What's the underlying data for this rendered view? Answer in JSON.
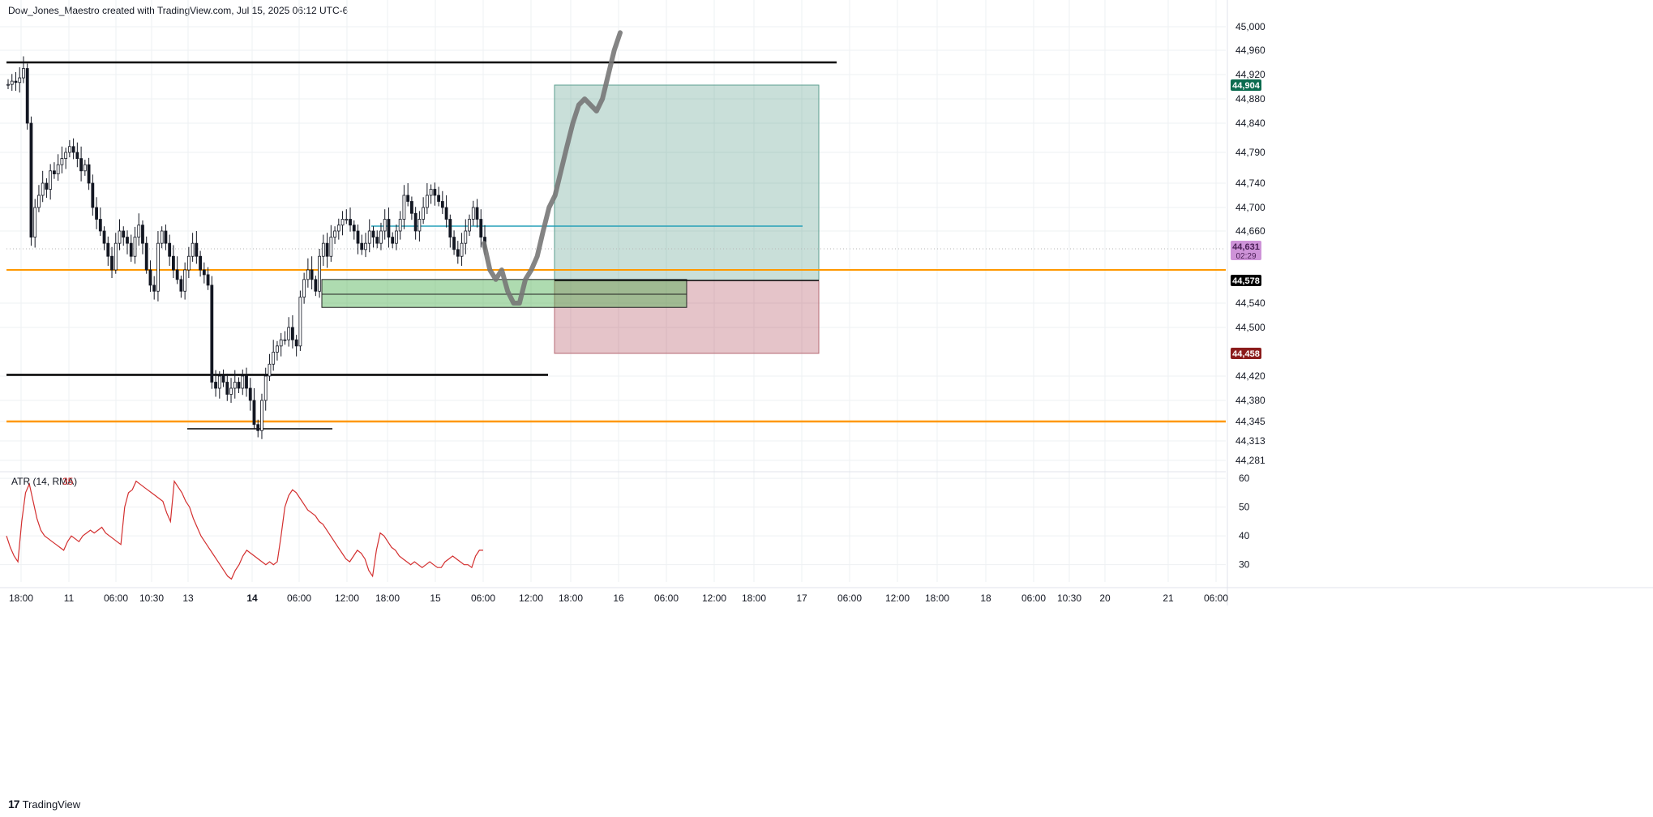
{
  "header": {
    "text": "Dow_Jones_Maestro created with TradingView.com, Jul 15, 2025 06:12 UTC-6"
  },
  "brand": {
    "text": "TradingView"
  },
  "colors": {
    "candle": "#131722",
    "orange": "#ff9800",
    "cyan": "#26a0b8",
    "profit_zone": "rgba(60,140,120,0.28)",
    "loss_zone": "rgba(170,60,75,0.30)",
    "demand_zone": "rgba(76,175,80,0.45)",
    "atr_line": "#d32f2f",
    "forecast": "#777777",
    "target_badge": "#0b6b4f",
    "stop_badge": "#8b1c1c",
    "entry_badge": "#000000",
    "price_badge": "#ce93d8"
  },
  "chart_data": [
    {
      "type": "candlestick",
      "title": "",
      "x_ticks": [
        "18:00",
        "11",
        "06:00",
        "10:30",
        "13",
        "14",
        "06:00",
        "12:00",
        "18:00",
        "15",
        "06:00",
        "12:00",
        "18:00",
        "16",
        "06:00",
        "12:00",
        "18:00",
        "17",
        "06:00",
        "12:00",
        "18:00",
        "18",
        "06:00",
        "10:30",
        "20",
        "21",
        "06:00"
      ],
      "y_ticks": [
        45000,
        44960,
        44920,
        44880,
        44840,
        44790,
        44740,
        44700,
        44660,
        44540,
        44500,
        44420,
        44380,
        44345,
        44313,
        44281
      ],
      "ylim": [
        44260,
        45020
      ],
      "price_badges": [
        {
          "label": "44,904",
          "value": 44904,
          "role": "target"
        },
        {
          "label": "44,631",
          "sub": "02:29",
          "value": 44631,
          "role": "last-price"
        },
        {
          "label": "44,578",
          "value": 44578,
          "role": "entry"
        },
        {
          "label": "44,458",
          "value": 44458,
          "role": "stop"
        }
      ],
      "levels": [
        {
          "name": "resistance",
          "value": 44940,
          "color": "#000000"
        },
        {
          "name": "support",
          "value": 44422,
          "color": "#000000"
        },
        {
          "name": "orange-level-upper",
          "value": 44600,
          "color": "#ff9800"
        },
        {
          "name": "orange-level-lower",
          "value": 44345,
          "color": "#ff9800"
        },
        {
          "name": "low-marker",
          "value": 44335,
          "color": "#000000"
        },
        {
          "name": "cyan-level",
          "value": 44670,
          "color": "#26a0b8"
        },
        {
          "name": "last-price",
          "value": 44631,
          "color": "#b0b0b0"
        }
      ],
      "position": {
        "type": "long",
        "target": 44904,
        "entry": 44578,
        "stop": 44458
      },
      "demand_zone": {
        "top": 44580,
        "bottom": 44533
      },
      "candle_closes": [
        44905,
        44910,
        44908,
        44915,
        44930,
        44840,
        44650,
        44700,
        44720,
        44740,
        44730,
        44760,
        44755,
        44770,
        44780,
        44790,
        44800,
        44790,
        44780,
        44760,
        44770,
        44740,
        44700,
        44680,
        44660,
        44640,
        44620,
        44600,
        44640,
        44660,
        44650,
        44640,
        44620,
        44650,
        44670,
        44640,
        44600,
        44570,
        44560,
        44640,
        44660,
        44640,
        44620,
        44600,
        44580,
        44560,
        44600,
        44620,
        44640,
        44620,
        44600,
        44590,
        44570,
        44410,
        44400,
        44420,
        44410,
        44390,
        44400,
        44410,
        44400,
        44420,
        44400,
        44380,
        44340,
        44330,
        44380,
        44420,
        44440,
        44460,
        44470,
        44480,
        44480,
        44500,
        44480,
        44470,
        44550,
        44580,
        44600,
        44580,
        44560,
        44620,
        44640,
        44620,
        44650,
        44660,
        44670,
        44680,
        44680,
        44670,
        44660,
        44640,
        44630,
        44640,
        44660,
        44650,
        44640,
        44660,
        44680,
        44650,
        44640,
        44660,
        44680,
        44720,
        44710,
        44690,
        44660,
        44680,
        44700,
        44720,
        44730,
        44720,
        44710,
        44700,
        44680,
        44650,
        44630,
        44620,
        44640,
        44660,
        44680,
        44700,
        44680,
        44650,
        44630
      ],
      "forecast_path": [
        44640,
        44600,
        44580,
        44600,
        44560,
        44540,
        44540,
        44580,
        44600,
        44620,
        44660,
        44700,
        44720,
        44760,
        44800,
        44840,
        44870,
        44880,
        44870,
        44860,
        44880,
        44920,
        44960,
        44990
      ]
    },
    {
      "type": "line",
      "title": "ATR (14, RMA)",
      "current_value": "35",
      "y_ticks": [
        60,
        50,
        40,
        30
      ],
      "ylim": [
        24,
        62
      ],
      "values": [
        40,
        36,
        33,
        31,
        45,
        55,
        58,
        52,
        46,
        42,
        40,
        39,
        38,
        37,
        36,
        35,
        38,
        40,
        39,
        38,
        40,
        41,
        42,
        41,
        42,
        43,
        41,
        40,
        39,
        38,
        37,
        50,
        55,
        56,
        59,
        58,
        57,
        56,
        55,
        54,
        53,
        52,
        48,
        45,
        59,
        57,
        55,
        52,
        50,
        46,
        43,
        40,
        38,
        36,
        34,
        32,
        30,
        28,
        26,
        25,
        28,
        30,
        33,
        35,
        34,
        33,
        32,
        31,
        30,
        31,
        30,
        31,
        40,
        50,
        54,
        56,
        55,
        53,
        51,
        49,
        48,
        47,
        45,
        44,
        42,
        40,
        38,
        36,
        34,
        32,
        31,
        33,
        35,
        34,
        32,
        28,
        26,
        35,
        41,
        40,
        38,
        36,
        35,
        33,
        32,
        31,
        30,
        31,
        30,
        29,
        30,
        31,
        30,
        29,
        29,
        31,
        32,
        33,
        32,
        31,
        30,
        30,
        29,
        33,
        35,
        35
      ]
    }
  ]
}
